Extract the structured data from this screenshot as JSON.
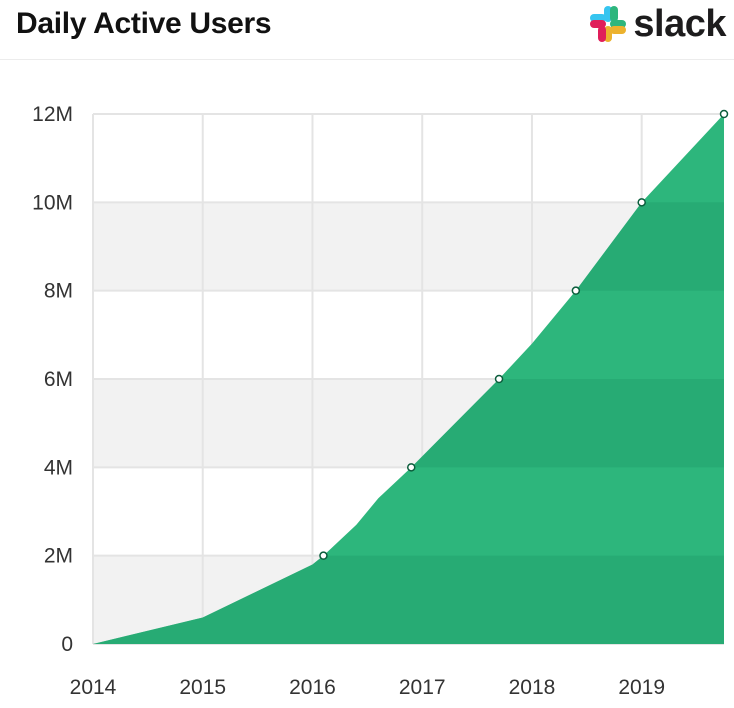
{
  "header": {
    "title": "Daily Active Users",
    "brand": "slack",
    "brand_icon": "slack-logo-icon"
  },
  "colors": {
    "area": "#2db67c",
    "area_dark": "#23a36d",
    "band": "#f2f2f2",
    "grid": "#e4e4e4",
    "marker_stroke": "#0b5d3c",
    "logo": [
      "#36c5f0",
      "#2eb67d",
      "#ecb22e",
      "#e01e5a"
    ]
  },
  "chart_data": {
    "type": "area",
    "title": "Daily Active Users",
    "xlabel": "",
    "ylabel": "",
    "xlim": [
      2014,
      2019.75
    ],
    "ylim": [
      0,
      12
    ],
    "x_ticks": [
      2014,
      2015,
      2016,
      2017,
      2018,
      2019
    ],
    "x_tick_labels": [
      "2014",
      "2015",
      "2016",
      "2017",
      "2018",
      "2019"
    ],
    "y_ticks": [
      0,
      2,
      4,
      6,
      8,
      10,
      12
    ],
    "y_tick_labels": [
      "0",
      "2M",
      "4M",
      "6M",
      "8M",
      "10M",
      "12M"
    ],
    "grid": true,
    "series": [
      {
        "values_unit": "millions of users",
        "x": [
          2014.0,
          2015.0,
          2015.5,
          2016.0,
          2016.1,
          2016.4,
          2016.6,
          2016.9,
          2017.7,
          2018.0,
          2018.4,
          2019.0,
          2019.75
        ],
        "y": [
          0,
          0.6,
          1.2,
          1.8,
          2.0,
          2.7,
          3.3,
          4.0,
          6.0,
          6.8,
          8.0,
          10.0,
          12.0
        ]
      }
    ],
    "markers": {
      "x": [
        2016.1,
        2016.9,
        2017.7,
        2018.4,
        2019.0,
        2019.75
      ],
      "y": [
        2,
        4,
        6,
        8,
        10,
        12
      ]
    }
  }
}
